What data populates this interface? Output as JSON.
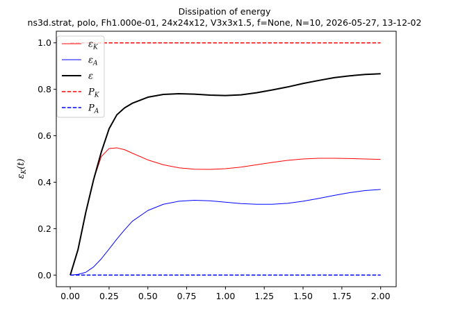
{
  "chart_data": {
    "type": "line",
    "title": "Dissipation of energy",
    "subtitle": "ns3d.strat, polo, Fh1.000e-01, 24x24x12, V3x3x1.5, f=None, N=10, 2026-05-27, 13-12-02",
    "xlabel": "",
    "ylabel": "ε_K(t)",
    "xlim": [
      -0.09,
      2.1
    ],
    "ylim": [
      -0.05,
      1.05
    ],
    "xticks": [
      "0.00",
      "0.25",
      "0.50",
      "0.75",
      "1.00",
      "1.25",
      "1.50",
      "1.75",
      "2.00"
    ],
    "xtick_values": [
      0,
      0.25,
      0.5,
      0.75,
      1.0,
      1.25,
      1.5,
      1.75,
      2.0
    ],
    "yticks": [
      "0.0",
      "0.2",
      "0.4",
      "0.6",
      "0.8",
      "1.0"
    ],
    "ytick_values": [
      0,
      0.2,
      0.4,
      0.6,
      0.8,
      1.0
    ],
    "legend_position": "top-left",
    "grid": false,
    "series": [
      {
        "name": "ε_K",
        "legend_label": "εK",
        "color": "#ff0000",
        "style": "solid",
        "width": 1,
        "x": [
          0,
          0.05,
          0.1,
          0.15,
          0.2,
          0.25,
          0.3,
          0.35,
          0.4,
          0.5,
          0.6,
          0.7,
          0.8,
          0.9,
          1.0,
          1.1,
          1.2,
          1.3,
          1.4,
          1.5,
          1.6,
          1.7,
          1.8,
          1.9,
          2.0
        ],
        "y": [
          0,
          0.11,
          0.27,
          0.41,
          0.51,
          0.545,
          0.548,
          0.54,
          0.525,
          0.496,
          0.475,
          0.462,
          0.456,
          0.455,
          0.458,
          0.465,
          0.475,
          0.485,
          0.494,
          0.5,
          0.503,
          0.503,
          0.502,
          0.5,
          0.498
        ]
      },
      {
        "name": "ε_A",
        "legend_label": "εA",
        "color": "#0000ff",
        "style": "solid",
        "width": 1,
        "x": [
          0,
          0.05,
          0.1,
          0.15,
          0.2,
          0.25,
          0.3,
          0.35,
          0.4,
          0.5,
          0.6,
          0.7,
          0.8,
          0.9,
          1.0,
          1.1,
          1.2,
          1.3,
          1.4,
          1.5,
          1.6,
          1.7,
          1.8,
          1.9,
          2.0
        ],
        "y": [
          0,
          0.003,
          0.012,
          0.035,
          0.07,
          0.112,
          0.155,
          0.195,
          0.232,
          0.278,
          0.305,
          0.318,
          0.322,
          0.32,
          0.314,
          0.308,
          0.305,
          0.305,
          0.309,
          0.318,
          0.33,
          0.343,
          0.355,
          0.364,
          0.369
        ]
      },
      {
        "name": "ε",
        "legend_label": "ε",
        "color": "#000000",
        "style": "solid",
        "width": 2,
        "x": [
          0,
          0.05,
          0.1,
          0.15,
          0.2,
          0.25,
          0.3,
          0.35,
          0.4,
          0.5,
          0.6,
          0.7,
          0.8,
          0.9,
          1.0,
          1.1,
          1.2,
          1.3,
          1.4,
          1.5,
          1.6,
          1.7,
          1.8,
          1.9,
          2.0
        ],
        "y": [
          0,
          0.11,
          0.27,
          0.41,
          0.53,
          0.63,
          0.69,
          0.72,
          0.74,
          0.766,
          0.778,
          0.781,
          0.779,
          0.775,
          0.773,
          0.776,
          0.785,
          0.797,
          0.81,
          0.825,
          0.838,
          0.85,
          0.858,
          0.864,
          0.867
        ]
      },
      {
        "name": "P_K",
        "legend_label": "PK",
        "color": "#ff0000",
        "style": "dashed",
        "width": 1.5,
        "x": [
          0,
          2.0
        ],
        "y": [
          1.0,
          1.0
        ]
      },
      {
        "name": "P_A",
        "legend_label": "PA",
        "color": "#0000ff",
        "style": "dashed",
        "width": 1.5,
        "x": [
          0,
          2.0
        ],
        "y": [
          0,
          0
        ]
      }
    ]
  }
}
